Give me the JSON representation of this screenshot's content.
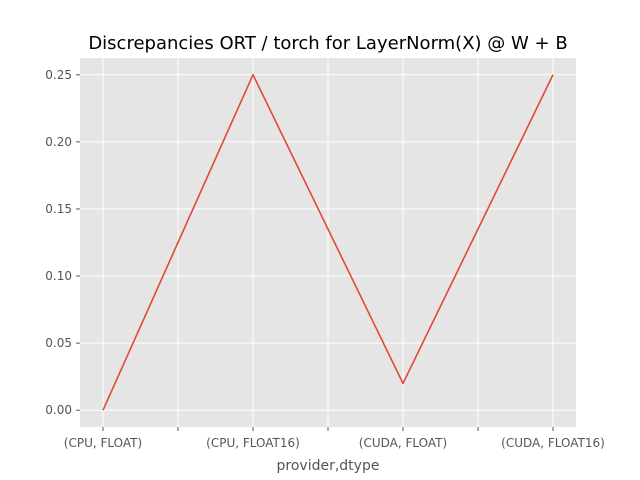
{
  "chart_data": {
    "type": "line",
    "title": "Discrepancies ORT / torch for LayerNorm(X) @ W + B",
    "xlabel": "provider,dtype",
    "ylabel": "",
    "categories": [
      "(CPU, FLOAT)",
      "(CPU, FLOAT16)",
      "(CUDA, FLOAT)",
      "(CUDA, FLOAT16)"
    ],
    "series": [
      {
        "values": [
          0.0,
          0.25,
          0.02,
          0.25
        ]
      }
    ],
    "ylim": [
      -0.0125,
      0.2625
    ],
    "yticks": [
      0.0,
      0.05,
      0.1,
      0.15,
      0.2,
      0.25
    ],
    "ytick_labels": [
      "0.00",
      "0.05",
      "0.10",
      "0.15",
      "0.20",
      "0.25"
    ],
    "grid": true,
    "colors": {
      "plot_background": "#e5e5e5",
      "grid": "#ffffff",
      "line": "#e24a33",
      "tick_text": "#555555"
    }
  }
}
